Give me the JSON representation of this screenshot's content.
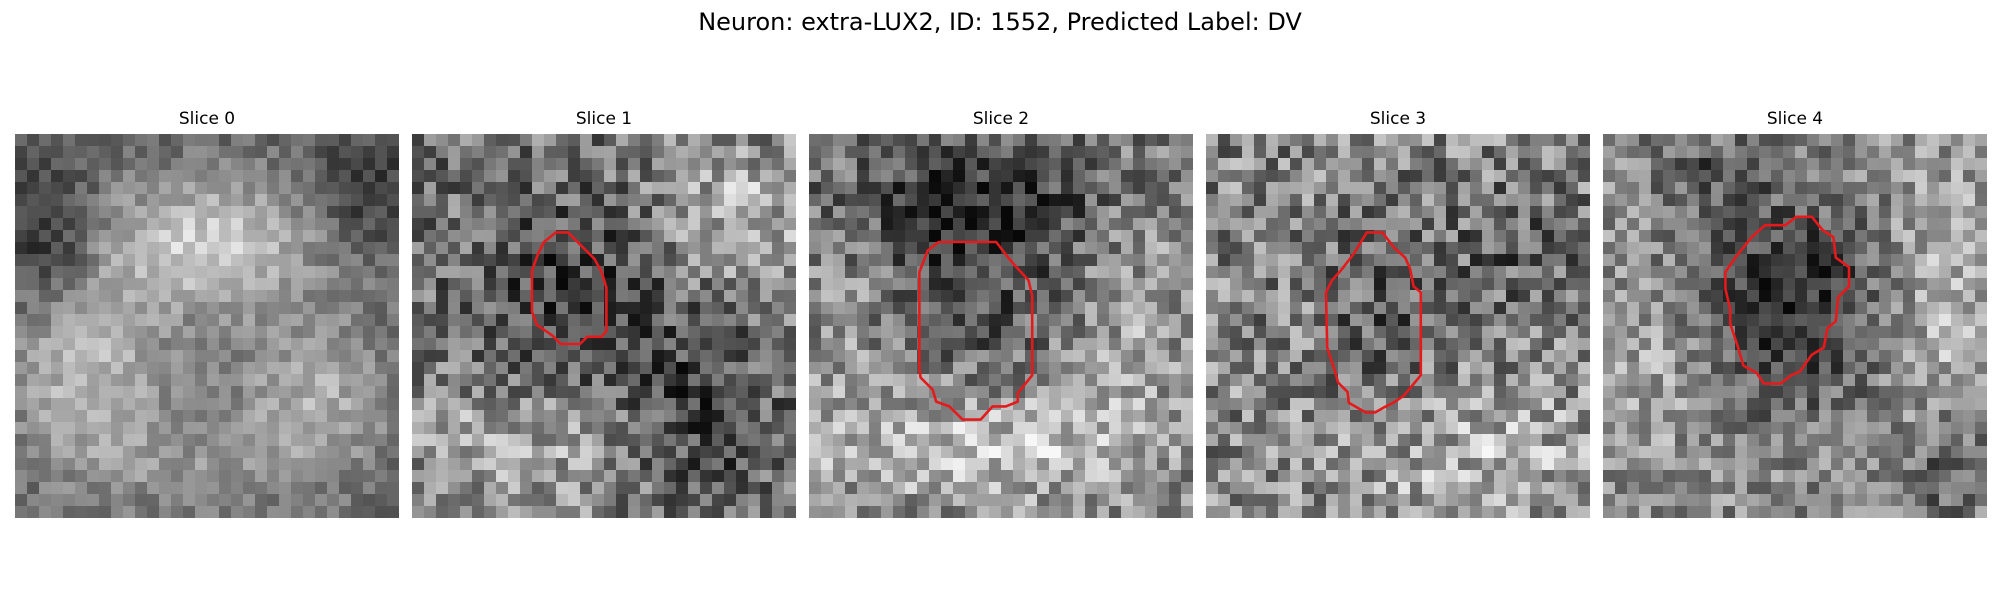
{
  "figure": {
    "suptitle": "Neuron: extra-LUX2, ID: 1552, Predicted Label: DV"
  },
  "slices": [
    {
      "title": "Slice 0",
      "has_contour": false
    },
    {
      "title": "Slice 1",
      "has_contour": true
    },
    {
      "title": "Slice 2",
      "has_contour": true
    },
    {
      "title": "Slice 3",
      "has_contour": true
    },
    {
      "title": "Slice 4",
      "has_contour": true
    }
  ],
  "colors": {
    "contour": "#e41a1c",
    "background": "#ffffff"
  },
  "colormap": "gray"
}
